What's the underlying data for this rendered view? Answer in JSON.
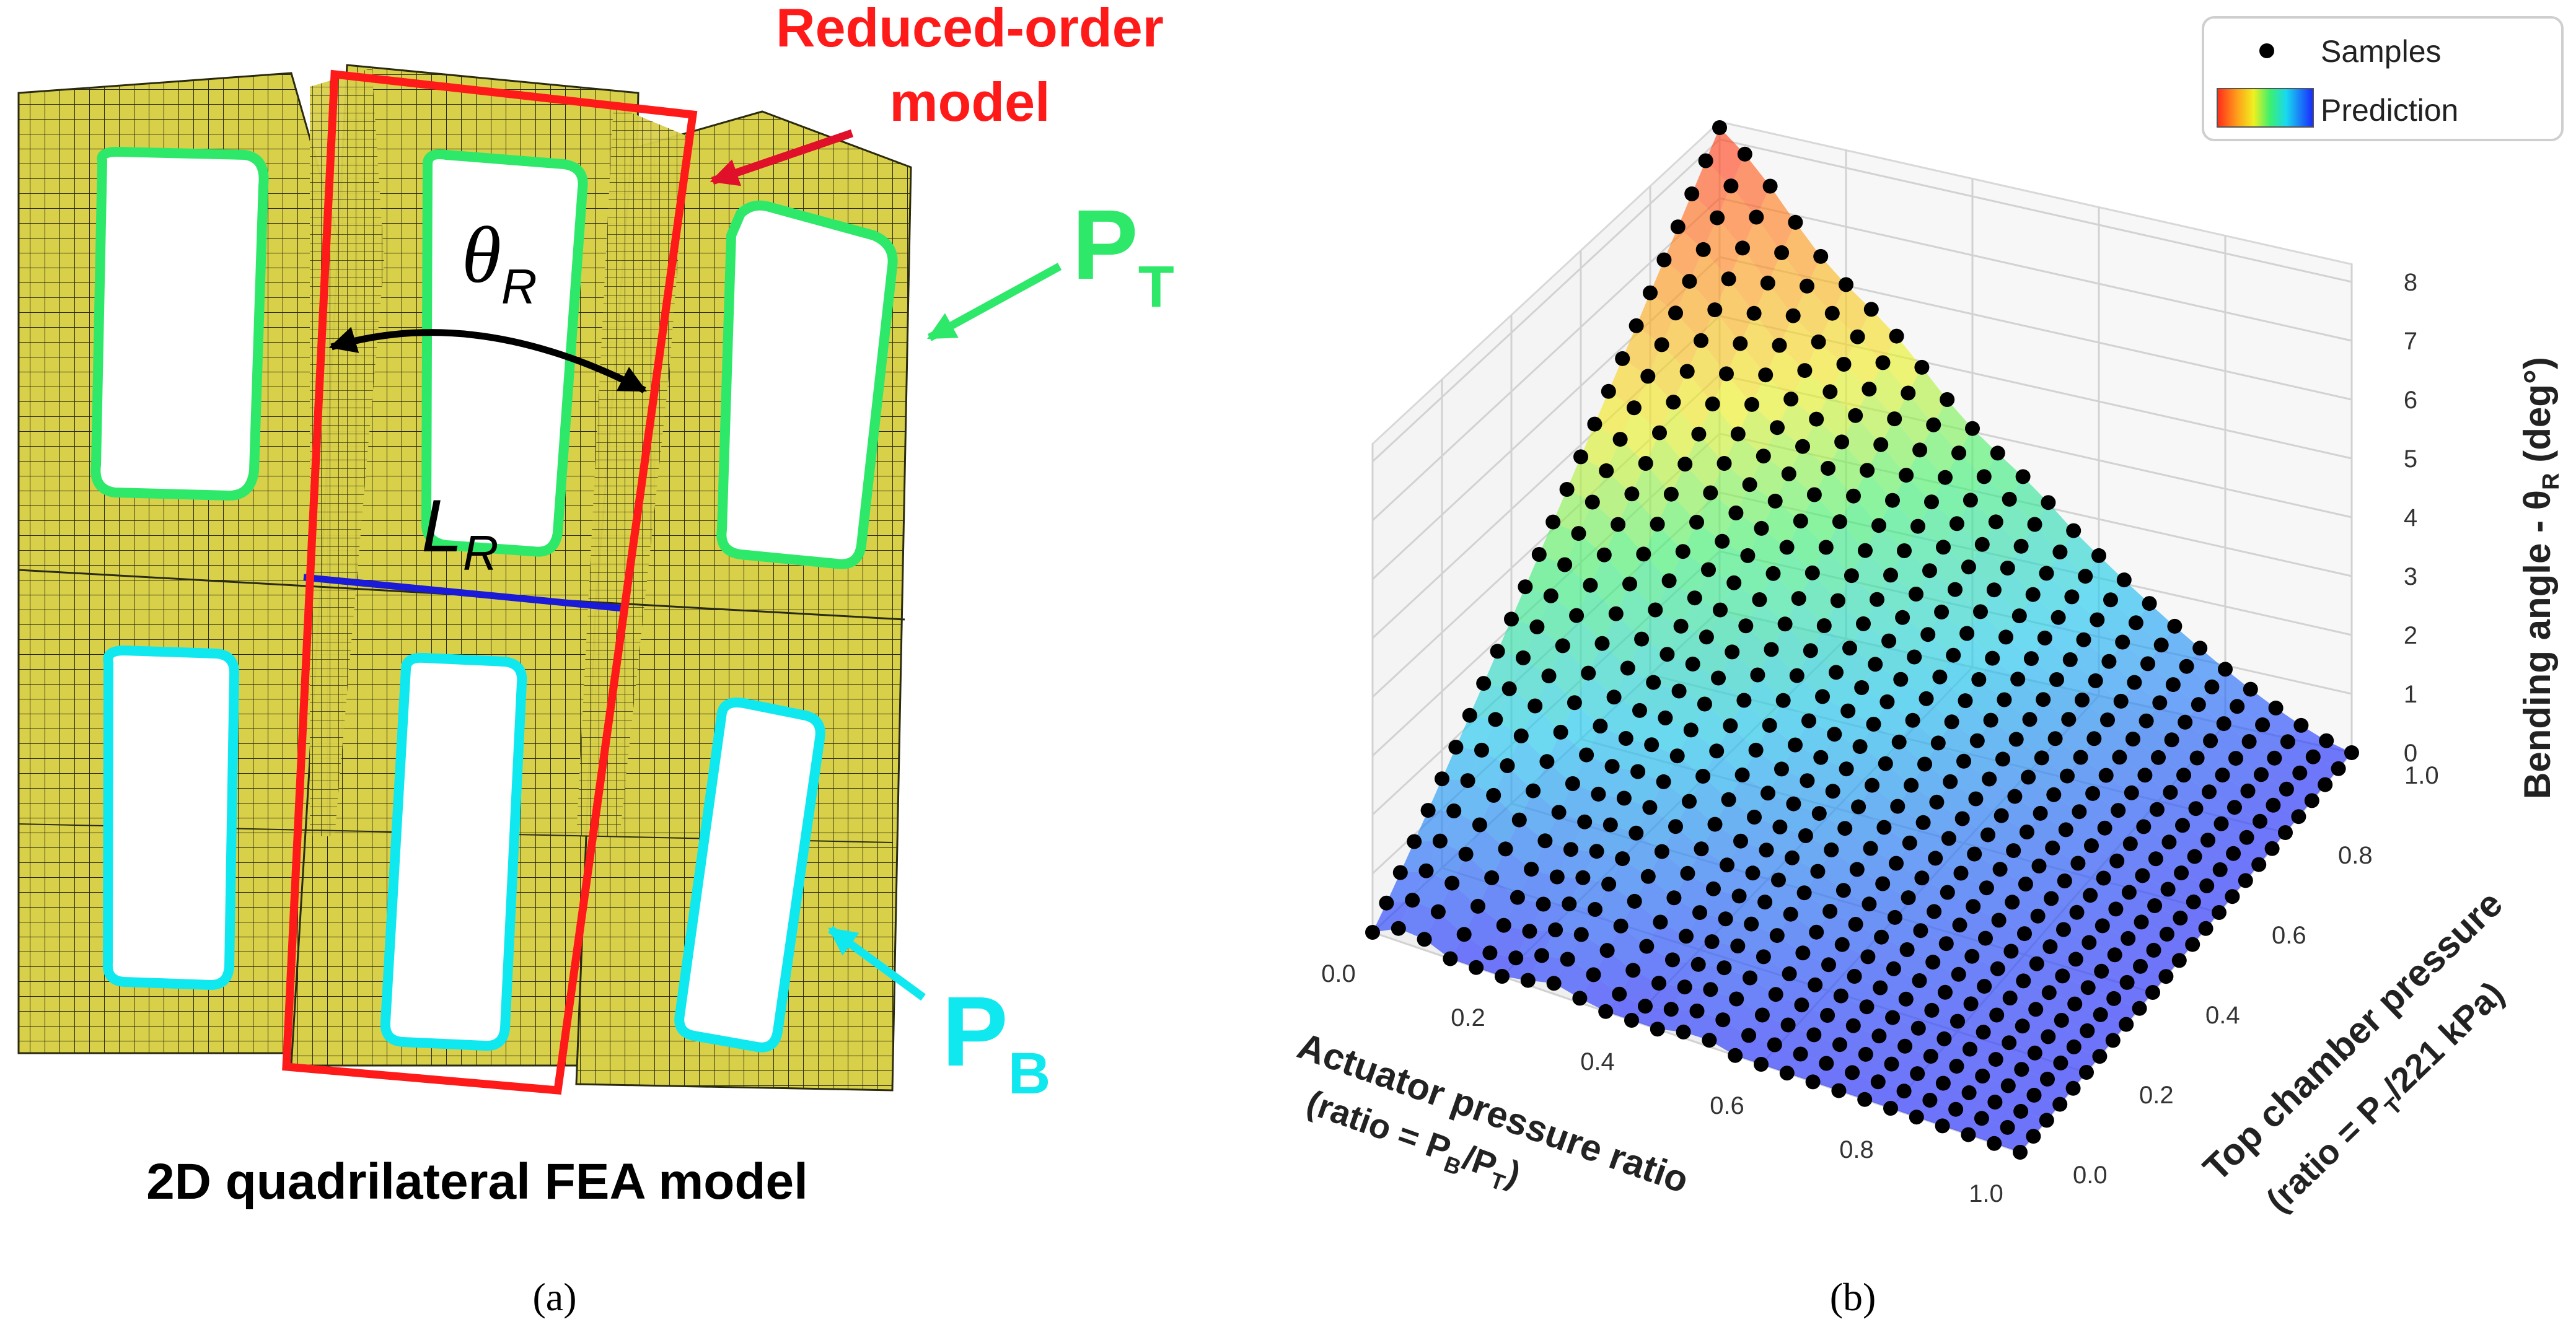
{
  "figure": {
    "panel_a": {
      "caption": "(a)",
      "title": "2D quadrilateral FEA model",
      "roi_label_line1": "Reduced-order",
      "roi_label_line2": "model",
      "theta_symbol": "θ",
      "theta_sub": "R",
      "length_symbol": "L",
      "length_sub": "R",
      "pt_label": "P",
      "pt_sub": "T",
      "pb_label": "P",
      "pb_sub": "B",
      "colors": {
        "mesh_fill": "#d9d04a",
        "mesh_line": "#2a2a10",
        "roi_box": "#ff1a1a",
        "roi_label": "#ff1a1a",
        "top_chamber": "#2ee86a",
        "bottom_chamber": "#10e8ef",
        "length_line": "#1a1ad8",
        "arrow": "#000000"
      }
    },
    "panel_b": {
      "caption": "(b)",
      "legend": {
        "samples": "Samples",
        "prediction": "Prediction",
        "placement": "top-right"
      },
      "colormap": "jet"
    }
  },
  "chart_data": {
    "type": "surface3d",
    "x_axis": {
      "label_line1": "Actuator pressure ratio",
      "label_line2_prefix": "(ratio = P",
      "label_line2_sub1": "B",
      "label_line2_mid": "/P",
      "label_line2_sub2": "T",
      "label_line2_suffix": ")",
      "ticks": [
        "0.0",
        "0.2",
        "0.4",
        "0.6",
        "0.8",
        "1.0"
      ],
      "range": [
        0,
        1
      ]
    },
    "y_axis": {
      "label_line1": "Top chamber pressure",
      "label_line2_prefix": "(ratio = P",
      "label_line2_sub": "T",
      "label_line2_suffix": "/221 kPa)",
      "ticks": [
        "0.0",
        "0.2",
        "0.4",
        "0.6",
        "0.8",
        "1.0"
      ],
      "range": [
        0,
        1
      ]
    },
    "z_axis": {
      "label_prefix": "Bending angle - θ",
      "label_sub": "R",
      "label_suffix": " (deg°)",
      "ticks": [
        "0",
        "1",
        "2",
        "3",
        "4",
        "5",
        "6",
        "7",
        "8"
      ],
      "range": [
        0,
        8.3
      ]
    },
    "series": [
      {
        "name": "Samples",
        "kind": "scatter",
        "grid_n": 26,
        "color": "#000000"
      },
      {
        "name": "Prediction",
        "kind": "surface",
        "colormap": "jet"
      }
    ],
    "approx_values": {
      "peak": {
        "x": 0.0,
        "y": 1.0,
        "z": 8.2
      },
      "corner_x1_y1": {
        "x": 1.0,
        "y": 1.0,
        "z": 0.0
      },
      "corner_x0_y0": {
        "x": 0.0,
        "y": 0.0,
        "z": 0.0
      },
      "corner_x1_y0": {
        "x": 1.0,
        "y": 0.0,
        "z": 0.0
      }
    },
    "grid": true
  }
}
